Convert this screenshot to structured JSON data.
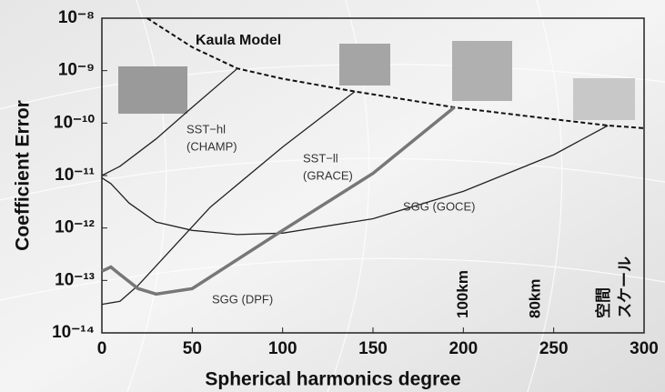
{
  "chart_data": {
    "type": "line",
    "x_label": "Spherical harmonics degree",
    "y_label": "Coefficient Error",
    "log_y": true,
    "xlim": [
      0,
      300
    ],
    "ylim": [
      1e-14,
      1e-08
    ],
    "xticks": [
      0,
      50,
      100,
      150,
      200,
      250,
      300
    ],
    "yticks": [
      {
        "value": 1e-14,
        "label": "10⁻¹⁴"
      },
      {
        "value": 1e-13,
        "label": "10⁻¹³"
      },
      {
        "value": 1e-12,
        "label": "10⁻¹²"
      },
      {
        "value": 1e-11,
        "label": "10⁻¹¹"
      },
      {
        "value": 1e-10,
        "label": "10⁻¹⁰"
      },
      {
        "value": 1e-09,
        "label": "10⁻⁹"
      },
      {
        "value": 1e-08,
        "label": "10⁻⁸"
      }
    ],
    "series": [
      {
        "label": [
          "Kaula Model"
        ],
        "color": "#111111",
        "dashed": true,
        "width": 2,
        "x": [
          25,
          50,
          75,
          100,
          140,
          195,
          240,
          280,
          300
        ],
        "values": [
          1e-08,
          2.8e-09,
          1.1e-09,
          7e-10,
          4e-10,
          2e-10,
          1.3e-10,
          9e-11,
          8e-11
        ]
      },
      {
        "label": [
          "SST−hl",
          "(CHAMP)"
        ],
        "color": "#222222",
        "dashed": false,
        "width": 1.3,
        "x": [
          0,
          10,
          30,
          50,
          75
        ],
        "values": [
          1e-11,
          1.5e-11,
          5e-11,
          2e-10,
          1.1e-09
        ]
      },
      {
        "label": [
          "SST−ll",
          "(GRACE)"
        ],
        "color": "#222222",
        "dashed": false,
        "width": 1.3,
        "x": [
          0,
          10,
          20,
          60,
          100,
          140
        ],
        "values": [
          3.5e-14,
          4e-14,
          8e-14,
          2.5e-12,
          3.5e-11,
          4e-10
        ]
      },
      {
        "label": [
          "SGG (GOCE)"
        ],
        "color": "#222222",
        "dashed": false,
        "width": 1.3,
        "x": [
          0,
          5,
          15,
          30,
          50,
          75,
          100,
          150,
          200,
          250,
          280
        ],
        "values": [
          9e-12,
          7e-12,
          3e-12,
          1.3e-12,
          9e-13,
          7.5e-13,
          8e-13,
          1.5e-12,
          5e-12,
          2.5e-11,
          9e-11
        ]
      },
      {
        "label": [
          "SGG (DPF)"
        ],
        "color": "#777777",
        "dashed": false,
        "width": 3.5,
        "x": [
          0,
          5,
          10,
          20,
          30,
          50,
          100,
          150,
          195
        ],
        "values": [
          1.5e-13,
          1.8e-13,
          1.3e-13,
          7e-14,
          5.5e-14,
          7e-14,
          9e-13,
          1.1e-11,
          2e-10
        ]
      }
    ],
    "annotations": [
      {
        "text": "100km",
        "x": 200
      },
      {
        "text": "80km",
        "x": 240
      },
      {
        "text": "空間",
        "x": 278
      },
      {
        "text": "スケール",
        "x": 290
      }
    ]
  }
}
